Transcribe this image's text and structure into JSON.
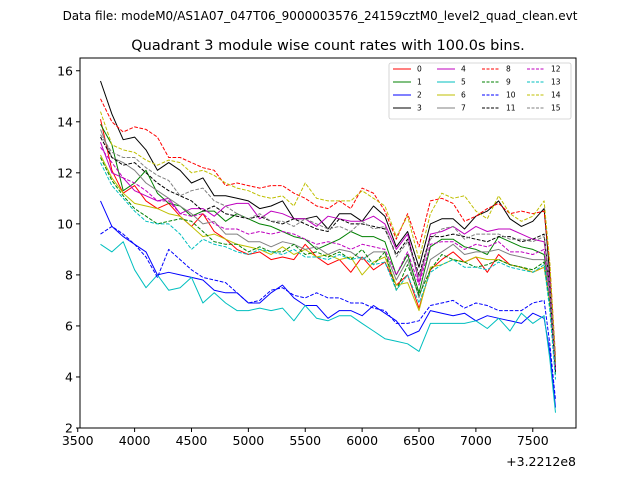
{
  "figure": {
    "suptitle": "Data file: modeM0/AS1A07_047T06_9000003576_24159cztM0_level2_quad_clean.evt"
  },
  "chart_data": {
    "type": "line",
    "title": "Quadrant 3 module wise count rates with 100.0s bins.",
    "xlabel": "",
    "ylabel": "",
    "x_offset_label": "+3.2212e8",
    "xlim": [
      3520,
      7880
    ],
    "ylim": [
      2.0,
      16.5
    ],
    "xticks": [
      3500,
      4000,
      4500,
      5000,
      5500,
      6000,
      6500,
      7000,
      7500
    ],
    "yticks": [
      2,
      4,
      6,
      8,
      10,
      12,
      14,
      16
    ],
    "grid": false,
    "legend_position": "top-right",
    "x": [
      3700,
      3800,
      3900,
      4000,
      4100,
      4200,
      4300,
      4400,
      4500,
      4600,
      4700,
      4800,
      4900,
      5000,
      5100,
      5200,
      5300,
      5400,
      5500,
      5600,
      5700,
      5800,
      5900,
      6000,
      6100,
      6200,
      6300,
      6400,
      6500,
      6600,
      6700,
      6800,
      6900,
      7000,
      7100,
      7200,
      7300,
      7400,
      7500,
      7600,
      7650,
      7700
    ],
    "series": [
      {
        "name": "0",
        "color": "#ff0000",
        "dash": "solid",
        "values": [
          14.1,
          12.1,
          11.2,
          11.5,
          10.9,
          10.6,
          10.8,
          10.3,
          9.9,
          10.4,
          9.7,
          9.4,
          9.0,
          8.8,
          8.9,
          8.6,
          8.7,
          8.6,
          9.2,
          8.7,
          8.4,
          8.6,
          8.1,
          8.7,
          8.2,
          8.5,
          7.6,
          8.0,
          6.7,
          8.2,
          8.6,
          8.9,
          8.5,
          8.7,
          8.1,
          8.8,
          8.4,
          8.3,
          8.1,
          8.3,
          7.0,
          4.4
        ]
      },
      {
        "name": "1",
        "color": "#008000",
        "dash": "solid",
        "values": [
          13.9,
          13.1,
          11.3,
          11.6,
          12.1,
          11.2,
          10.8,
          10.7,
          10.3,
          10.5,
          10.5,
          10.1,
          10.4,
          10.2,
          10.0,
          9.9,
          9.7,
          9.5,
          9.4,
          9.0,
          9.2,
          9.4,
          9.7,
          9.5,
          9.5,
          9.3,
          8.0,
          8.8,
          7.3,
          9.1,
          9.4,
          9.4,
          9.1,
          9.0,
          8.8,
          9.5,
          9.3,
          9.1,
          9.0,
          8.8,
          7.5,
          4.5
        ]
      },
      {
        "name": "2",
        "color": "#0000ff",
        "dash": "solid",
        "values": [
          10.9,
          9.9,
          9.5,
          9.2,
          8.9,
          8.0,
          8.1,
          8.0,
          7.9,
          7.8,
          7.4,
          7.3,
          7.3,
          6.9,
          6.9,
          7.3,
          7.6,
          7.1,
          6.8,
          6.8,
          6.3,
          6.6,
          6.6,
          6.4,
          6.8,
          6.5,
          6.2,
          5.6,
          5.8,
          6.6,
          6.5,
          6.4,
          6.5,
          6.2,
          6.4,
          6.3,
          6.2,
          6.1,
          6.5,
          6.3,
          5.0,
          2.8
        ]
      },
      {
        "name": "3",
        "color": "#000000",
        "dash": "solid",
        "values": [
          15.6,
          14.3,
          13.3,
          13.4,
          12.9,
          12.1,
          12.4,
          12.1,
          11.6,
          11.8,
          11.1,
          11.1,
          11.0,
          10.9,
          10.6,
          10.7,
          10.9,
          10.2,
          10.2,
          10.3,
          9.8,
          10.4,
          10.4,
          10.1,
          10.7,
          10.3,
          9.1,
          9.7,
          8.3,
          10.0,
          10.2,
          10.2,
          9.8,
          10.3,
          10.5,
          10.9,
          10.2,
          9.9,
          10.1,
          10.6,
          8.0,
          4.6
        ]
      },
      {
        "name": "4",
        "color": "#bf00bf",
        "dash": "solid",
        "values": [
          13.2,
          12.0,
          11.8,
          11.3,
          11.1,
          10.9,
          11.0,
          10.4,
          10.6,
          10.6,
          10.3,
          10.7,
          10.8,
          10.8,
          10.2,
          10.5,
          10.4,
          10.2,
          10.2,
          9.9,
          10.3,
          10.2,
          10.1,
          10.1,
          10.3,
          10.0,
          9.0,
          9.6,
          7.7,
          9.6,
          9.7,
          9.9,
          9.6,
          9.9,
          9.7,
          9.8,
          9.8,
          9.6,
          9.4,
          9.3,
          7.8,
          4.4
        ]
      },
      {
        "name": "5",
        "color": "#00bfbf",
        "dash": "solid",
        "values": [
          9.2,
          8.9,
          9.3,
          8.2,
          7.5,
          8.0,
          7.4,
          7.5,
          7.9,
          6.9,
          7.3,
          6.9,
          6.6,
          6.6,
          6.7,
          6.6,
          6.7,
          6.2,
          6.8,
          6.3,
          6.2,
          6.4,
          6.4,
          6.1,
          5.8,
          5.5,
          5.4,
          5.3,
          5.0,
          6.1,
          6.1,
          6.1,
          6.1,
          6.2,
          5.9,
          6.3,
          5.8,
          6.5,
          6.1,
          6.4,
          4.7,
          2.6
        ]
      },
      {
        "name": "6",
        "color": "#bfbf00",
        "dash": "solid",
        "values": [
          12.7,
          11.8,
          11.2,
          10.8,
          10.7,
          10.6,
          10.4,
          10.3,
          9.9,
          9.5,
          9.6,
          9.4,
          9.2,
          9.1,
          9.0,
          8.8,
          9.1,
          8.8,
          9.0,
          8.7,
          8.8,
          8.6,
          8.7,
          8.0,
          8.5,
          8.7,
          7.6,
          7.7,
          6.6,
          8.3,
          8.4,
          8.6,
          8.5,
          8.7,
          8.6,
          8.6,
          8.4,
          8.3,
          8.1,
          8.3,
          6.9,
          4.5
        ]
      },
      {
        "name": "7",
        "color": "#808080",
        "dash": "solid",
        "values": [
          13.7,
          12.6,
          12.4,
          12.1,
          11.6,
          11.3,
          11.0,
          10.7,
          10.4,
          10.0,
          10.1,
          9.6,
          9.6,
          9.3,
          9.3,
          9.1,
          9.3,
          9.2,
          9.0,
          9.1,
          8.8,
          9.0,
          8.9,
          8.6,
          8.9,
          8.9,
          7.8,
          8.6,
          7.1,
          8.6,
          8.9,
          9.2,
          8.8,
          8.9,
          8.9,
          9.0,
          8.8,
          8.7,
          8.6,
          8.6,
          7.1,
          4.3
        ]
      },
      {
        "name": "8",
        "color": "#ff0000",
        "dash": "dashed",
        "values": [
          14.9,
          14.0,
          13.6,
          13.8,
          13.7,
          13.4,
          12.6,
          12.6,
          12.4,
          12.2,
          12.1,
          11.5,
          11.6,
          11.5,
          11.4,
          11.5,
          11.5,
          11.2,
          11.0,
          10.7,
          10.6,
          10.9,
          10.6,
          11.4,
          11.2,
          10.5,
          9.4,
          10.4,
          9.1,
          10.9,
          11.0,
          10.8,
          10.1,
          10.3,
          10.6,
          10.8,
          10.4,
          10.5,
          10.4,
          10.5,
          8.4,
          4.8
        ]
      },
      {
        "name": "9",
        "color": "#008000",
        "dash": "dashed",
        "values": [
          12.6,
          11.7,
          11.1,
          10.6,
          10.3,
          10.0,
          10.1,
          10.2,
          10.1,
          9.7,
          9.3,
          9.2,
          9.2,
          8.9,
          9.1,
          8.9,
          8.9,
          9.2,
          8.8,
          8.9,
          8.7,
          8.9,
          8.6,
          9.0,
          8.4,
          8.9,
          7.4,
          8.4,
          7.2,
          8.2,
          8.8,
          8.6,
          8.5,
          8.3,
          8.4,
          8.6,
          8.4,
          8.3,
          8.2,
          8.5,
          6.8,
          4.1
        ]
      },
      {
        "name": "10",
        "color": "#0000ff",
        "dash": "dashed",
        "values": [
          9.6,
          9.9,
          9.6,
          9.2,
          8.7,
          7.9,
          9.0,
          8.6,
          8.2,
          7.9,
          7.8,
          7.7,
          7.3,
          6.9,
          7.0,
          7.4,
          7.5,
          7.2,
          7.1,
          7.3,
          7.1,
          7.1,
          6.9,
          6.9,
          6.7,
          6.6,
          6.1,
          6.1,
          6.2,
          6.8,
          6.9,
          7.0,
          6.7,
          6.9,
          6.8,
          6.6,
          6.6,
          6.6,
          6.9,
          7.0,
          5.3,
          3.1
        ]
      },
      {
        "name": "11",
        "color": "#000000",
        "dash": "dashed",
        "values": [
          13.4,
          12.6,
          12.3,
          12.4,
          12.0,
          11.6,
          11.3,
          11.1,
          10.9,
          10.5,
          10.7,
          10.4,
          10.3,
          10.2,
          10.3,
          10.1,
          10.0,
          10.2,
          10.0,
          9.8,
          9.7,
          10.2,
          10.0,
          10.0,
          9.9,
          9.8,
          8.8,
          9.4,
          8.0,
          9.5,
          9.5,
          9.6,
          9.5,
          9.4,
          9.3,
          9.5,
          9.5,
          9.3,
          9.4,
          9.6,
          7.5,
          4.2
        ]
      },
      {
        "name": "12",
        "color": "#bf00bf",
        "dash": "dashed",
        "values": [
          13.0,
          12.4,
          11.8,
          11.6,
          11.3,
          10.9,
          10.9,
          10.4,
          10.3,
          10.4,
          10.0,
          9.8,
          9.8,
          9.6,
          9.7,
          9.6,
          9.7,
          9.6,
          9.4,
          9.2,
          9.3,
          9.2,
          9.0,
          9.2,
          9.1,
          9.0,
          8.0,
          8.9,
          7.6,
          9.2,
          9.3,
          9.3,
          9.0,
          9.2,
          9.1,
          9.3,
          8.9,
          8.9,
          8.8,
          9.0,
          7.3,
          4.3
        ]
      },
      {
        "name": "13",
        "color": "#00bfbf",
        "dash": "dashed",
        "values": [
          12.4,
          11.5,
          11.0,
          10.5,
          10.1,
          10.0,
          10.0,
          9.6,
          9.0,
          9.4,
          9.2,
          9.1,
          8.9,
          8.8,
          9.0,
          8.9,
          8.8,
          9.0,
          8.7,
          8.7,
          8.6,
          8.8,
          8.6,
          8.7,
          8.4,
          8.5,
          7.4,
          8.0,
          6.9,
          8.1,
          8.4,
          8.6,
          8.3,
          8.3,
          8.2,
          8.5,
          8.3,
          8.2,
          8.1,
          8.4,
          6.6,
          3.9
        ]
      },
      {
        "name": "14",
        "color": "#bfbf00",
        "dash": "dashed",
        "values": [
          14.4,
          13.1,
          12.9,
          12.8,
          12.5,
          12.3,
          12.5,
          12.4,
          12.0,
          12.1,
          11.9,
          11.6,
          11.4,
          11.3,
          11.1,
          11.0,
          11.1,
          10.7,
          11.6,
          11.0,
          10.9,
          10.9,
          10.9,
          11.3,
          11.0,
          10.7,
          9.5,
          10.3,
          8.6,
          10.4,
          11.2,
          11.0,
          11.1,
          10.5,
          10.2,
          11.1,
          10.4,
          10.1,
          10.3,
          10.9,
          8.5,
          4.6
        ]
      },
      {
        "name": "15",
        "color": "#808080",
        "dash": "dashed",
        "values": [
          13.5,
          12.8,
          12.6,
          12.6,
          12.2,
          11.9,
          11.7,
          11.1,
          11.3,
          11.4,
          10.9,
          10.7,
          10.4,
          10.2,
          10.4,
          10.1,
          10.1,
          9.9,
          10.2,
          10.0,
          9.8,
          9.9,
          9.7,
          10.1,
          9.8,
          9.9,
          8.7,
          9.3,
          7.9,
          9.4,
          9.8,
          9.9,
          9.4,
          9.6,
          9.6,
          9.6,
          9.4,
          9.4,
          9.3,
          9.5,
          7.6,
          4.5
        ]
      }
    ]
  }
}
